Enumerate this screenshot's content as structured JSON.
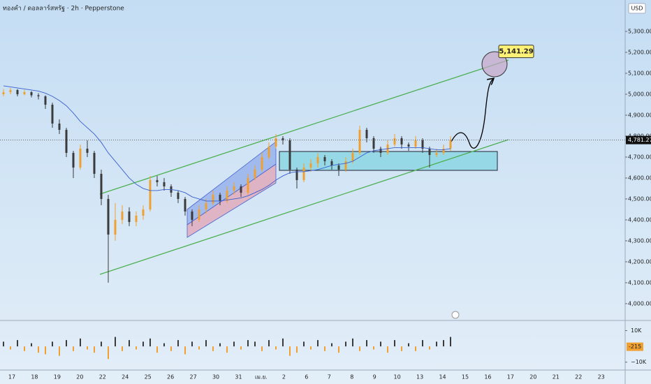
{
  "header": {
    "symbol": "ทองคำ / ดอลลาร์สหรัฐ · 2h · Pepperstone",
    "currency": "USD"
  },
  "chart_data": {
    "type": "candlestick",
    "x_labels": [
      "17",
      "18",
      "19",
      "20",
      "22",
      "24",
      "25",
      "26",
      "27",
      "30",
      "31",
      "เม.ย.",
      "2",
      "6",
      "7",
      "8",
      "9",
      "10",
      "13",
      "14",
      "15",
      "16",
      "17",
      "20",
      "21",
      "22",
      "23"
    ],
    "candles": [
      [
        5000,
        5025,
        4990,
        5010
      ],
      [
        5010,
        5030,
        5000,
        5020
      ],
      [
        5020,
        5025,
        4990,
        5000
      ],
      [
        5000,
        5020,
        4995,
        5010
      ],
      [
        5010,
        5015,
        4985,
        4995
      ],
      [
        4995,
        5005,
        4975,
        4990
      ],
      [
        4990,
        4995,
        4930,
        4950
      ],
      [
        4950,
        4960,
        4840,
        4860
      ],
      [
        4860,
        4880,
        4810,
        4830
      ],
      [
        4830,
        4840,
        4700,
        4720
      ],
      [
        4720,
        4730,
        4600,
        4650
      ],
      [
        4650,
        4760,
        4640,
        4740
      ],
      [
        4740,
        4780,
        4700,
        4720
      ],
      [
        4720,
        4730,
        4600,
        4620
      ],
      [
        4620,
        4640,
        4470,
        4500
      ],
      [
        4500,
        4520,
        4100,
        4330
      ],
      [
        4330,
        4480,
        4300,
        4400
      ],
      [
        4400,
        4470,
        4380,
        4440
      ],
      [
        4440,
        4460,
        4370,
        4390
      ],
      [
        4390,
        4440,
        4370,
        4420
      ],
      [
        4420,
        4470,
        4400,
        4450
      ],
      [
        4450,
        4610,
        4440,
        4590
      ],
      [
        4590,
        4610,
        4560,
        4580
      ],
      [
        4580,
        4600,
        4540,
        4560
      ],
      [
        4560,
        4570,
        4510,
        4530
      ],
      [
        4530,
        4540,
        4480,
        4500
      ],
      [
        4500,
        4510,
        4420,
        4440
      ],
      [
        4440,
        4450,
        4370,
        4400
      ],
      [
        4400,
        4470,
        4390,
        4450
      ],
      [
        4450,
        4500,
        4430,
        4480
      ],
      [
        4480,
        4540,
        4470,
        4520
      ],
      [
        4520,
        4530,
        4470,
        4490
      ],
      [
        4490,
        4560,
        4480,
        4540
      ],
      [
        4540,
        4580,
        4520,
        4560
      ],
      [
        4560,
        4570,
        4510,
        4530
      ],
      [
        4530,
        4620,
        4520,
        4600
      ],
      [
        4600,
        4660,
        4590,
        4640
      ],
      [
        4640,
        4720,
        4630,
        4700
      ],
      [
        4700,
        4770,
        4690,
        4750
      ],
      [
        4750,
        4810,
        4740,
        4790
      ],
      [
        4790,
        4800,
        4760,
        4780
      ],
      [
        4780,
        4790,
        4620,
        4640
      ],
      [
        4640,
        4650,
        4550,
        4590
      ],
      [
        4590,
        4670,
        4580,
        4650
      ],
      [
        4650,
        4690,
        4630,
        4670
      ],
      [
        4670,
        4720,
        4650,
        4700
      ],
      [
        4700,
        4710,
        4660,
        4680
      ],
      [
        4680,
        4690,
        4640,
        4660
      ],
      [
        4660,
        4670,
        4610,
        4640
      ],
      [
        4640,
        4700,
        4630,
        4680
      ],
      [
        4680,
        4740,
        4670,
        4720
      ],
      [
        4720,
        4850,
        4710,
        4830
      ],
      [
        4830,
        4840,
        4770,
        4790
      ],
      [
        4790,
        4800,
        4720,
        4740
      ],
      [
        4740,
        4750,
        4700,
        4720
      ],
      [
        4720,
        4780,
        4710,
        4760
      ],
      [
        4760,
        4810,
        4750,
        4790
      ],
      [
        4790,
        4800,
        4740,
        4760
      ],
      [
        4760,
        4770,
        4730,
        4750
      ],
      [
        4750,
        4800,
        4740,
        4780
      ],
      [
        4780,
        4790,
        4720,
        4740
      ],
      [
        4740,
        4750,
        4650,
        4710
      ],
      [
        4710,
        4740,
        4700,
        4720
      ],
      [
        4720,
        4760,
        4710,
        4740
      ],
      [
        4740,
        4800,
        4730,
        4780
      ]
    ],
    "up_color": "#f0a030",
    "down_color": "#3a3a3a",
    "ma": {
      "color": "#3a5fcd",
      "values": [
        5040,
        5035,
        5030,
        5025,
        5020,
        5015,
        5005,
        4990,
        4970,
        4945,
        4910,
        4870,
        4840,
        4810,
        4770,
        4720,
        4680,
        4640,
        4600,
        4570,
        4550,
        4540,
        4540,
        4545,
        4545,
        4540,
        4530,
        4510,
        4500,
        4490,
        4490,
        4490,
        4495,
        4500,
        4505,
        4515,
        4530,
        4545,
        4565,
        4590,
        4610,
        4625,
        4630,
        4630,
        4635,
        4640,
        4650,
        4660,
        4665,
        4670,
        4680,
        4700,
        4720,
        4730,
        4735,
        4740,
        4745,
        4745,
        4745,
        4745,
        4745,
        4740,
        4735,
        4735,
        4740
      ]
    },
    "ylim": [
      3933,
      5450
    ],
    "yticks": [
      {
        "value": 5300,
        "label": "5,300.00"
      },
      {
        "value": 5200,
        "label": "5,200.00"
      },
      {
        "value": 5100,
        "label": "5,100.00"
      },
      {
        "value": 5000,
        "label": "5,000.00"
      },
      {
        "value": 4900,
        "label": "4,900.00"
      },
      {
        "value": 4800,
        "label": "4,800.00"
      },
      {
        "value": 4700,
        "label": "4,700.00"
      },
      {
        "value": 4600,
        "label": "4,600.00"
      },
      {
        "value": 4500,
        "label": "4,500.00"
      },
      {
        "value": 4400,
        "label": "4,400.00"
      },
      {
        "value": 4300,
        "label": "4,300.00"
      },
      {
        "value": 4200,
        "label": "4,200.00"
      },
      {
        "value": 4100,
        "label": "4,100.00"
      },
      {
        "value": 4000,
        "label": "4,000.00"
      }
    ],
    "last_price": {
      "value": 4781.27,
      "label": "4,781.27"
    },
    "target": {
      "value": 5141.29,
      "label": "5,141.29"
    }
  },
  "volume": {
    "type": "bar",
    "values": [
      3000,
      -2000,
      4000,
      -3000,
      2000,
      -4000,
      -5000,
      3000,
      -6000,
      4000,
      -3000,
      5000,
      -2000,
      -4000,
      3000,
      -8000,
      6000,
      -3000,
      4000,
      -2000,
      3000,
      5000,
      -4000,
      2000,
      -3000,
      4000,
      -5000,
      3000,
      -2000,
      4000,
      -3000,
      2000,
      -4000,
      3000,
      -2000,
      4000,
      3000,
      -3000,
      4000,
      -2000,
      5000,
      -6000,
      -4000,
      3000,
      -2000,
      4000,
      -3000,
      2000,
      -4000,
      3000,
      5000,
      -3000,
      4000,
      -2000,
      3000,
      -4000,
      4000,
      -3000,
      2000,
      -3000,
      4000,
      -2000,
      3000,
      4000,
      6000
    ],
    "up_color": "#3a3a3a",
    "down_color": "#f0a030",
    "ylim": [
      -15000,
      16000
    ],
    "yticks": [
      {
        "value": 10000,
        "label": "10K"
      },
      {
        "value": -10000,
        "label": "−10K"
      }
    ],
    "last_value": {
      "value": -215,
      "label": "-215"
    }
  }
}
